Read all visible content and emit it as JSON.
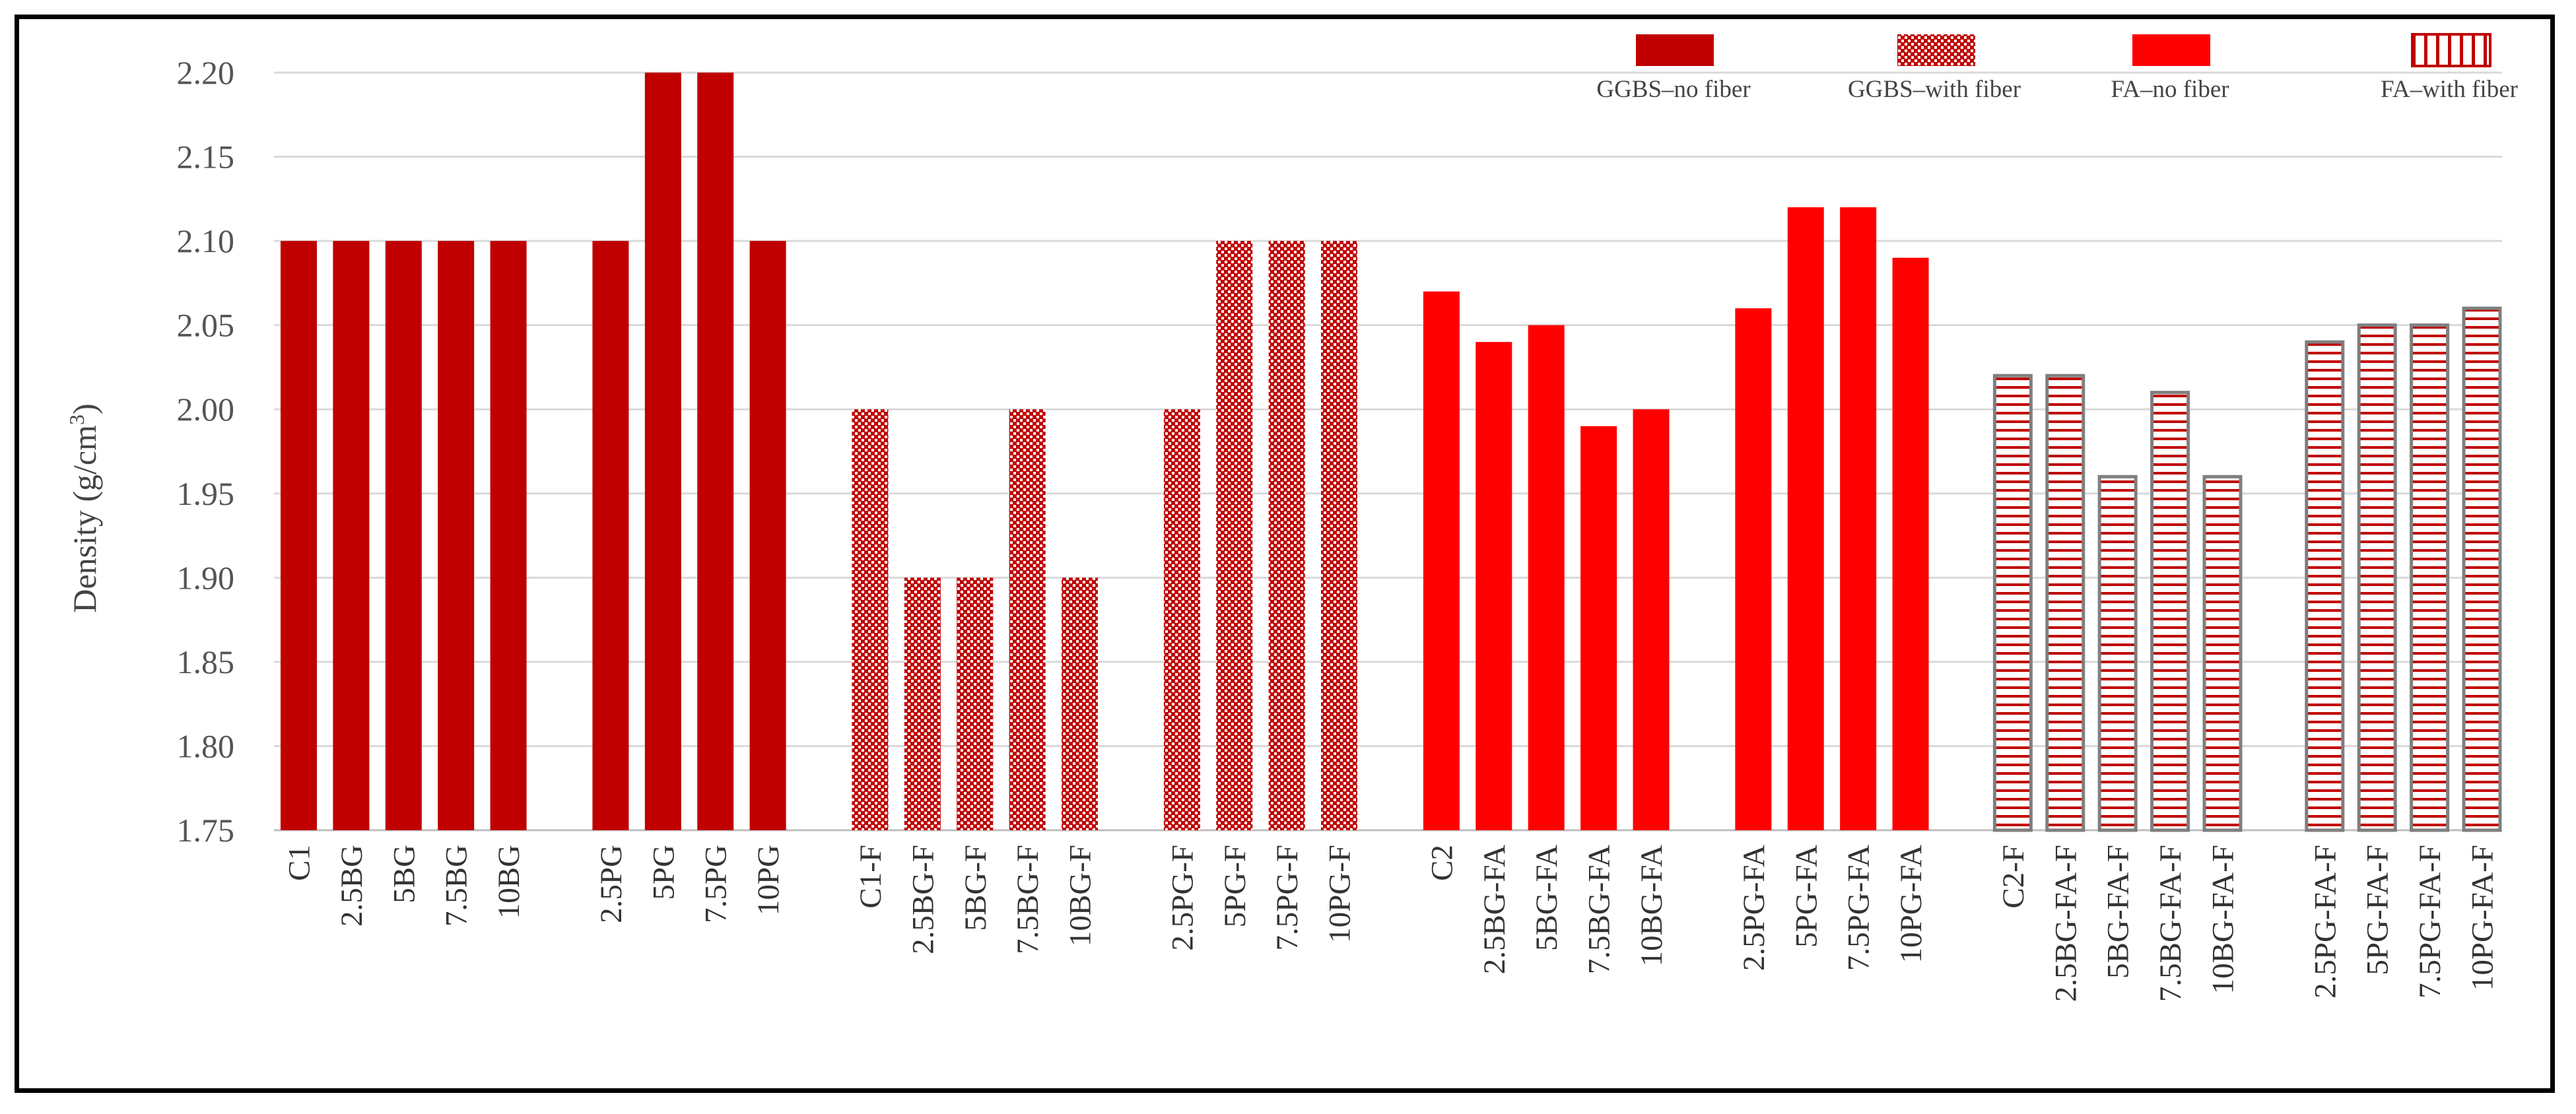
{
  "chart_data": {
    "type": "bar",
    "title": "",
    "xlabel": "",
    "ylabel": "Density (g/cm",
    "ylabel_sup": "3",
    "ylabel_close": ")",
    "ylim": [
      1.75,
      2.2
    ],
    "yticks": [
      "1.75",
      "1.80",
      "1.85",
      "1.90",
      "1.95",
      "2.00",
      "2.05",
      "2.10",
      "2.15",
      "2.20"
    ],
    "ytick_values": [
      1.75,
      1.8,
      1.85,
      1.9,
      1.95,
      2.0,
      2.05,
      2.1,
      2.15,
      2.2
    ],
    "grid": true,
    "legend_position": "top-right",
    "colors": {
      "ggbs": "#c00000",
      "fa": "#ff0000",
      "fa_stripe": "#c00000",
      "fa_outline": "#7f7f7f",
      "grid": "#d9d9d9"
    },
    "series": [
      {
        "name": "GGBS–no fiber",
        "style": "solid-dark"
      },
      {
        "name": "GGBS–with fiber",
        "style": "checker"
      },
      {
        "name": "FA–no fiber",
        "style": "solid-red"
      },
      {
        "name": "FA–with fiber",
        "style": "stripes"
      }
    ],
    "groups": [
      {
        "series": 0,
        "categories": [
          "C1",
          "2.5BG",
          "5BG",
          "7.5BG",
          "10BG"
        ],
        "values": [
          2.1,
          2.1,
          2.1,
          2.1,
          2.1
        ]
      },
      {
        "series": 0,
        "categories": [
          "2.5PG",
          "5PG",
          "7.5PG",
          "10PG"
        ],
        "values": [
          2.1,
          2.2,
          2.2,
          2.1
        ]
      },
      {
        "series": 1,
        "categories": [
          "C1-F",
          "2.5BG-F",
          "5BG-F",
          "7.5BG-F",
          "10BG-F"
        ],
        "values": [
          2.0,
          1.9,
          1.9,
          2.0,
          1.9
        ]
      },
      {
        "series": 1,
        "categories": [
          "2.5PG-F",
          "5PG-F",
          "7.5PG-F",
          "10PG-F"
        ],
        "values": [
          2.0,
          2.1,
          2.1,
          2.1
        ]
      },
      {
        "series": 2,
        "categories": [
          "C2",
          "2.5BG-FA",
          "5BG-FA",
          "7.5BG-FA",
          "10BG-FA"
        ],
        "values": [
          2.07,
          2.04,
          2.05,
          1.99,
          2.0
        ]
      },
      {
        "series": 2,
        "categories": [
          "2.5PG-FA",
          "5PG-FA",
          "7.5PG-FA",
          "10PG-FA"
        ],
        "values": [
          2.06,
          2.12,
          2.12,
          2.09
        ]
      },
      {
        "series": 3,
        "categories": [
          "C2-F",
          "2.5BG-FA-F",
          "5BG-FA-F",
          "7.5BG-FA-F",
          "10BG-FA-F"
        ],
        "values": [
          2.02,
          2.02,
          1.96,
          2.01,
          1.96
        ]
      },
      {
        "series": 3,
        "categories": [
          "2.5PG-FA-F",
          "5PG-FA-F",
          "7.5PG-FA-F",
          "10PG-FA-F"
        ],
        "values": [
          2.04,
          2.05,
          2.05,
          2.06
        ]
      }
    ]
  }
}
